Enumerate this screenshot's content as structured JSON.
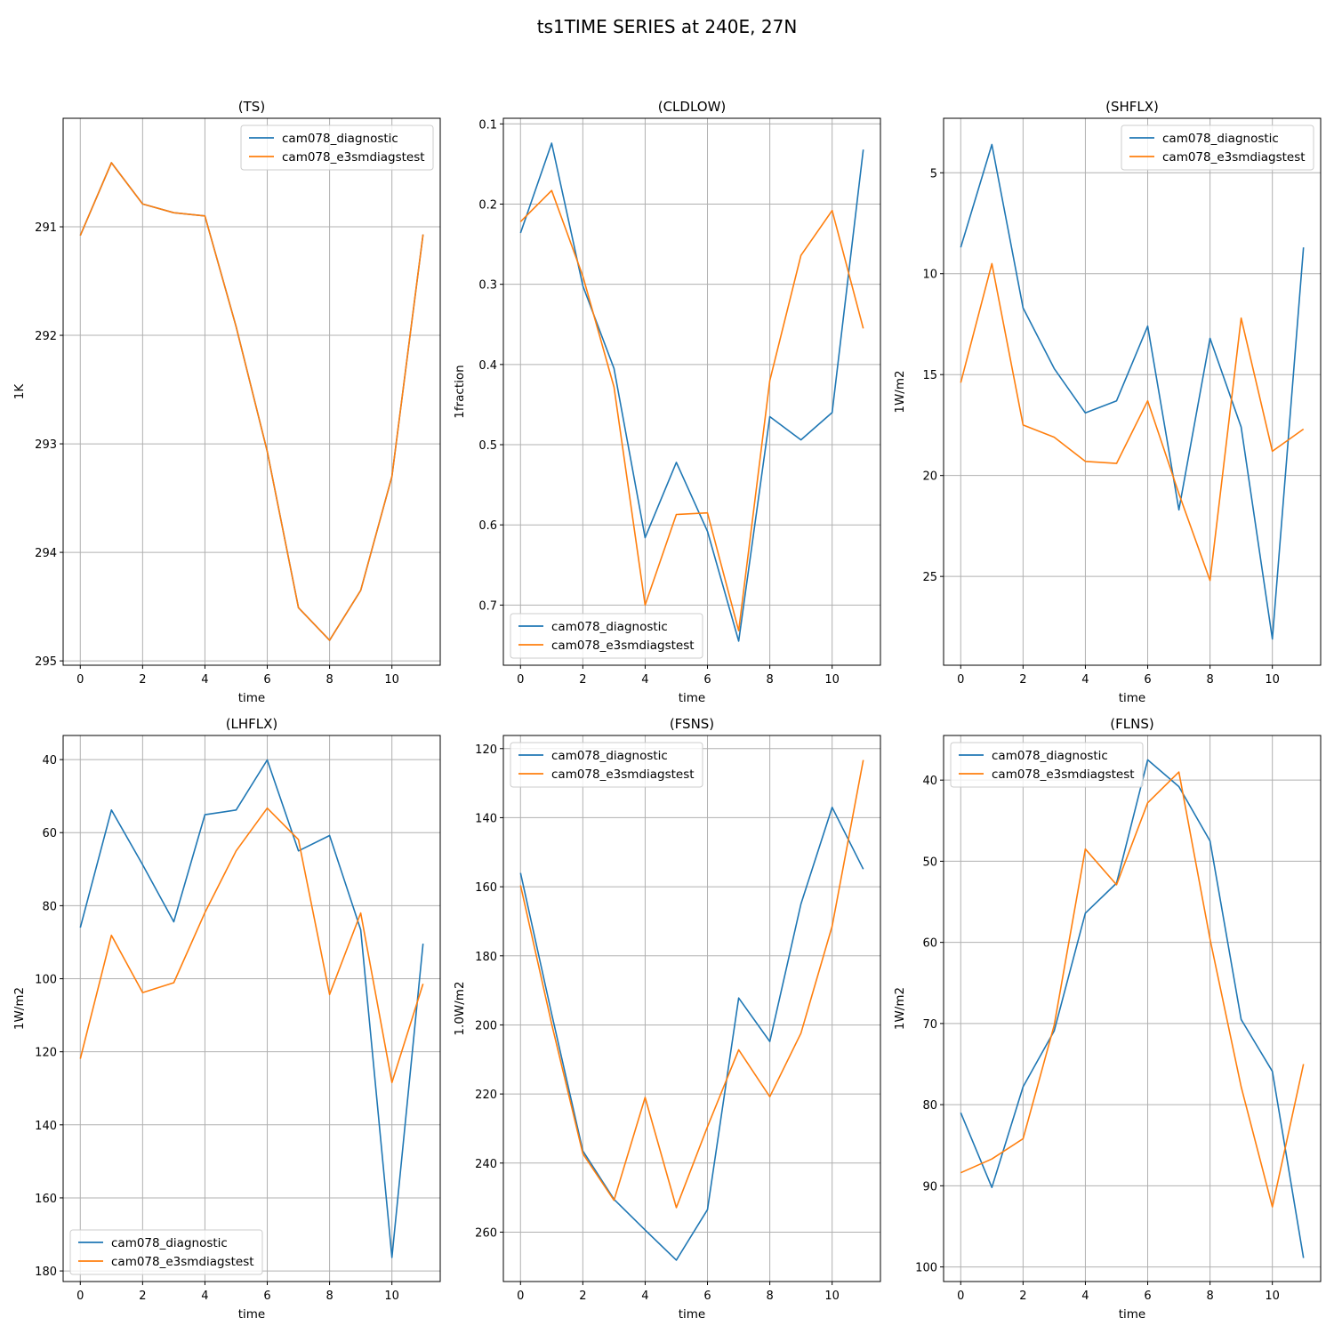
{
  "figure": {
    "title": "ts1TIME SERIES at 240E, 27N"
  },
  "colors": {
    "cam078_diagnostic": "#1f77b4",
    "cam078_e3smdiagstest": "#ff7f0e",
    "grid": "#b0b0b0"
  },
  "chart_data": [
    {
      "type": "line",
      "title": "(TS)",
      "xlabel": "time",
      "ylabel": "1K",
      "x": [
        0,
        1,
        2,
        3,
        4,
        5,
        6,
        7,
        8,
        9,
        10,
        11
      ],
      "xlim": [
        -0.55,
        11.55
      ],
      "xticks": [
        0,
        2,
        4,
        6,
        8,
        10
      ],
      "ylim": [
        290.0,
        295.04
      ],
      "y_inverted": true,
      "yticks": [
        291,
        292,
        293,
        294,
        295
      ],
      "grid": true,
      "legend": "upper right",
      "series": [
        {
          "name": "cam078_diagnostic",
          "values": [
            291.08,
            290.41,
            290.79,
            290.87,
            290.9,
            291.92,
            293.07,
            294.51,
            294.81,
            294.35,
            293.3,
            291.07
          ]
        },
        {
          "name": "cam078_e3smdiagstest",
          "values": [
            291.08,
            290.41,
            290.79,
            290.87,
            290.9,
            291.92,
            293.07,
            294.51,
            294.81,
            294.35,
            293.3,
            291.07
          ]
        }
      ]
    },
    {
      "type": "line",
      "title": "(CLDLOW)",
      "xlabel": "time",
      "ylabel": "1fraction",
      "x": [
        0,
        1,
        2,
        3,
        4,
        5,
        6,
        7,
        8,
        9,
        10,
        11
      ],
      "xlim": [
        -0.55,
        11.55
      ],
      "xticks": [
        0,
        2,
        4,
        6,
        8,
        10
      ],
      "ylim": [
        0.093,
        0.775
      ],
      "y_inverted": true,
      "yticks": [
        0.1,
        0.2,
        0.3,
        0.4,
        0.5,
        0.6,
        0.7
      ],
      "ytick_labels": [
        "0.1",
        "0.2",
        "0.3",
        "0.4",
        "0.5",
        "0.6",
        "0.7"
      ],
      "grid": true,
      "legend": "lower left",
      "series": [
        {
          "name": "cam078_diagnostic",
          "values": [
            0.236,
            0.124,
            0.302,
            0.405,
            0.616,
            0.522,
            0.608,
            0.745,
            0.465,
            0.494,
            0.46,
            0.132
          ]
        },
        {
          "name": "cam078_e3smdiagstest",
          "values": [
            0.222,
            0.183,
            0.29,
            0.428,
            0.7,
            0.587,
            0.585,
            0.732,
            0.42,
            0.264,
            0.208,
            0.355
          ]
        }
      ]
    },
    {
      "type": "line",
      "title": "(SHFLX)",
      "xlabel": "time",
      "ylabel": "1W/m2",
      "x": [
        0,
        1,
        2,
        3,
        4,
        5,
        6,
        7,
        8,
        9,
        10,
        11
      ],
      "xlim": [
        -0.55,
        11.55
      ],
      "xticks": [
        0,
        2,
        4,
        6,
        8,
        10
      ],
      "ylim": [
        2.3,
        29.4
      ],
      "y_inverted": true,
      "yticks": [
        5,
        10,
        15,
        20,
        25
      ],
      "grid": true,
      "legend": "upper right",
      "series": [
        {
          "name": "cam078_diagnostic",
          "values": [
            8.7,
            3.6,
            11.7,
            14.7,
            16.9,
            16.3,
            12.6,
            21.7,
            13.2,
            17.6,
            28.1,
            8.7
          ]
        },
        {
          "name": "cam078_e3smdiagstest",
          "values": [
            15.4,
            9.5,
            17.5,
            18.1,
            19.3,
            19.4,
            16.3,
            20.9,
            25.2,
            12.2,
            18.8,
            17.7
          ]
        }
      ]
    },
    {
      "type": "line",
      "title": "(LHFLX)",
      "xlabel": "time",
      "ylabel": "1W/m2",
      "x": [
        0,
        1,
        2,
        3,
        4,
        5,
        6,
        7,
        8,
        9,
        10,
        11
      ],
      "xlim": [
        -0.55,
        11.55
      ],
      "xticks": [
        0,
        2,
        4,
        6,
        8,
        10
      ],
      "ylim": [
        33.4,
        182.9
      ],
      "y_inverted": true,
      "yticks": [
        40,
        60,
        80,
        100,
        120,
        140,
        160,
        180
      ],
      "grid": true,
      "legend": "lower left",
      "series": [
        {
          "name": "cam078_diagnostic",
          "values": [
            86.0,
            53.8,
            68.8,
            84.4,
            55.1,
            53.8,
            40.1,
            65.0,
            60.8,
            86.6,
            176.3,
            90.4
          ]
        },
        {
          "name": "cam078_e3smdiagstest",
          "values": [
            121.9,
            88.1,
            103.8,
            101.1,
            81.9,
            65.0,
            53.3,
            61.9,
            104.3,
            82.0,
            128.4,
            101.4
          ]
        }
      ]
    },
    {
      "type": "line",
      "title": "(FSNS)",
      "xlabel": "time",
      "ylabel": "1.0W/m2",
      "x": [
        0,
        1,
        2,
        3,
        4,
        5,
        6,
        7,
        8,
        9,
        10,
        11
      ],
      "xlim": [
        -0.55,
        11.55
      ],
      "xticks": [
        0,
        2,
        4,
        6,
        8,
        10
      ],
      "ylim": [
        116.2,
        274.3
      ],
      "y_inverted": true,
      "yticks": [
        120,
        140,
        160,
        180,
        200,
        220,
        240,
        260
      ],
      "grid": true,
      "legend": "upper left",
      "series": [
        {
          "name": "cam078_diagnostic",
          "values": [
            156.0,
            196.8,
            236.5,
            250.5,
            259.4,
            268.1,
            253.5,
            192.2,
            204.8,
            165.0,
            137.0,
            154.9
          ]
        },
        {
          "name": "cam078_e3smdiagstest",
          "values": [
            159.6,
            199.7,
            237.3,
            250.8,
            221.0,
            252.9,
            229.5,
            207.2,
            220.8,
            202.4,
            171.4,
            123.3
          ]
        }
      ]
    },
    {
      "type": "line",
      "title": "(FLNS)",
      "xlabel": "time",
      "ylabel": "1W/m2",
      "x": [
        0,
        1,
        2,
        3,
        4,
        5,
        6,
        7,
        8,
        9,
        10,
        11
      ],
      "xlim": [
        -0.55,
        11.55
      ],
      "xticks": [
        0,
        2,
        4,
        6,
        8,
        10
      ],
      "ylim": [
        34.5,
        101.8
      ],
      "y_inverted": true,
      "yticks": [
        40,
        50,
        60,
        70,
        80,
        90,
        100
      ],
      "grid": true,
      "legend": "upper left",
      "series": [
        {
          "name": "cam078_diagnostic",
          "values": [
            81.0,
            90.2,
            77.8,
            70.9,
            56.4,
            52.7,
            37.5,
            40.8,
            47.5,
            69.5,
            75.9,
            98.9
          ]
        },
        {
          "name": "cam078_e3smdiagstest",
          "values": [
            88.4,
            86.7,
            84.2,
            70.2,
            48.5,
            52.9,
            42.8,
            39.0,
            59.6,
            77.8,
            92.6,
            75.0
          ]
        }
      ]
    }
  ]
}
